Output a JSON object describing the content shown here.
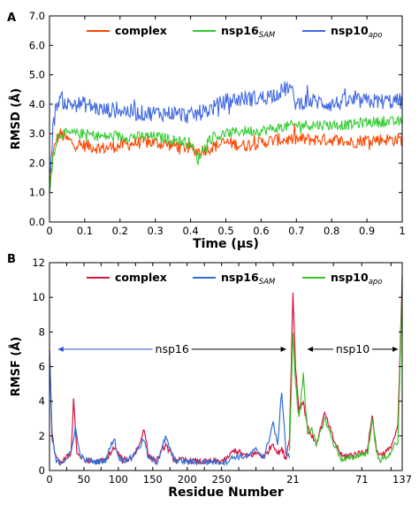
{
  "figure": {
    "panel_a_label": "A",
    "panel_b_label": "B"
  },
  "chart_data": [
    {
      "panel": "A",
      "type": "line",
      "xlabel": "Time (μs)",
      "ylabel": "RMSD (Å)",
      "xlim": [
        0,
        1
      ],
      "ylim": [
        0,
        7
      ],
      "xticks": [
        0,
        0.1,
        0.2,
        0.3,
        0.4,
        0.5,
        0.6,
        0.7,
        0.8,
        0.9,
        1
      ],
      "xtick_labels": [
        "0",
        "0.1",
        "0.2",
        "0.3",
        "0.4",
        "0.5",
        "0.6",
        "0.7",
        "0.8",
        "0.9",
        "1"
      ],
      "yticks": [
        0,
        1,
        2,
        3,
        4,
        5,
        6,
        7
      ],
      "ytick_labels": [
        "0.0",
        "1.0",
        "2.0",
        "3.0",
        "4.0",
        "5.0",
        "6.0",
        "7.0"
      ],
      "legend_placement": "top",
      "series": [
        {
          "name": "complex",
          "color": "#ff4500",
          "x": [
            0,
            0.01,
            0.02,
            0.03,
            0.05,
            0.08,
            0.1,
            0.15,
            0.2,
            0.25,
            0.3,
            0.35,
            0.4,
            0.42,
            0.45,
            0.5,
            0.55,
            0.6,
            0.65,
            0.7,
            0.75,
            0.8,
            0.85,
            0.9,
            0.95,
            1.0
          ],
          "y": [
            1.2,
            2.3,
            2.8,
            3.0,
            2.8,
            2.6,
            2.6,
            2.5,
            2.6,
            2.7,
            2.7,
            2.6,
            2.5,
            2.4,
            2.5,
            2.7,
            2.6,
            2.7,
            2.8,
            2.8,
            2.8,
            2.8,
            2.7,
            2.8,
            2.8,
            2.8
          ],
          "noise": 0.22
        },
        {
          "name": "nsp16SAM",
          "color": "#32cd32",
          "x": [
            0,
            0.01,
            0.02,
            0.03,
            0.05,
            0.08,
            0.1,
            0.15,
            0.2,
            0.25,
            0.3,
            0.35,
            0.4,
            0.42,
            0.45,
            0.5,
            0.55,
            0.6,
            0.65,
            0.7,
            0.75,
            0.8,
            0.85,
            0.9,
            0.95,
            1.0
          ],
          "y": [
            1.0,
            2.2,
            2.8,
            3.0,
            3.0,
            3.0,
            3.0,
            2.9,
            2.9,
            2.9,
            2.9,
            2.8,
            2.7,
            2.1,
            2.8,
            3.0,
            3.1,
            3.1,
            3.2,
            3.3,
            3.3,
            3.3,
            3.3,
            3.4,
            3.4,
            3.4
          ],
          "noise": 0.18
        },
        {
          "name": "nsp10apo",
          "color": "#4169e1",
          "x": [
            0,
            0.01,
            0.02,
            0.03,
            0.05,
            0.08,
            0.1,
            0.15,
            0.2,
            0.25,
            0.3,
            0.35,
            0.4,
            0.45,
            0.5,
            0.55,
            0.6,
            0.65,
            0.68,
            0.7,
            0.72,
            0.75,
            0.8,
            0.85,
            0.9,
            0.95,
            1.0
          ],
          "y": [
            1.5,
            3.2,
            4.0,
            4.2,
            4.0,
            4.0,
            4.0,
            3.8,
            3.8,
            3.7,
            3.7,
            3.7,
            3.6,
            3.8,
            4.1,
            4.2,
            4.2,
            4.4,
            4.6,
            4.0,
            4.1,
            4.1,
            4.0,
            4.1,
            4.1,
            4.1,
            4.1
          ],
          "noise": 0.28
        }
      ],
      "legend_labels": [
        {
          "main": "complex",
          "sub": ""
        },
        {
          "main": "nsp16",
          "sub": "SAM"
        },
        {
          "main": "nsp10",
          "sub": "apo"
        }
      ]
    },
    {
      "panel": "B",
      "type": "line",
      "xlabel": "Residue Number",
      "ylabel": "RMSF (Å)",
      "xlim": [
        0,
        410
      ],
      "ylim": [
        0,
        12
      ],
      "xticks": [
        0,
        20,
        40,
        60,
        80,
        100,
        120,
        140,
        160,
        180,
        200,
        220,
        240,
        260,
        283,
        330,
        363,
        397,
        410
      ],
      "xtick_labels": [
        "0",
        "",
        "50",
        "",
        "100",
        "",
        "150",
        "",
        "200",
        "",
        "250",
        "",
        "",
        "",
        "21",
        "",
        "71",
        "",
        "137"
      ],
      "yticks": [
        0,
        2,
        4,
        6,
        8,
        10,
        12
      ],
      "ytick_labels": [
        "0",
        "2",
        "4",
        "6",
        "8",
        "10",
        "12"
      ],
      "legend_placement": "top",
      "annotations": [
        {
          "text": "nsp16",
          "x_start": 10,
          "x_end": 275,
          "y": 7.0
        },
        {
          "text": "nsp10",
          "x_start": 300,
          "x_end": 405,
          "y": 7.0
        }
      ],
      "series": [
        {
          "name": "complex",
          "color": "#d2143c",
          "x": [
            0,
            3,
            8,
            15,
            25,
            28,
            32,
            40,
            55,
            65,
            75,
            85,
            95,
            105,
            110,
            115,
            125,
            135,
            145,
            160,
            175,
            190,
            205,
            215,
            230,
            240,
            250,
            260,
            265,
            270,
            275,
            279,
            283,
            286,
            290,
            295,
            300,
            310,
            320,
            330,
            340,
            350,
            360,
            370,
            375,
            380,
            385,
            395,
            400,
            405,
            410
          ],
          "y": [
            7.0,
            2.0,
            0.6,
            0.5,
            1.0,
            4.1,
            1.0,
            0.6,
            0.5,
            0.6,
            1.3,
            0.6,
            0.7,
            1.5,
            2.5,
            0.8,
            0.6,
            1.5,
            0.6,
            0.6,
            0.5,
            0.5,
            0.6,
            1.2,
            0.8,
            1.0,
            0.8,
            1.6,
            1.0,
            1.2,
            0.7,
            2.0,
            10.2,
            6.0,
            3.5,
            4.0,
            2.5,
            1.5,
            3.3,
            1.8,
            0.8,
            0.9,
            1.0,
            1.2,
            3.3,
            1.2,
            0.9,
            1.2,
            1.8,
            2.5,
            11.1
          ]
        },
        {
          "name": "nsp16SAM",
          "color": "#2f6fd6",
          "x": [
            0,
            3,
            8,
            15,
            25,
            30,
            35,
            40,
            55,
            65,
            75,
            80,
            85,
            95,
            105,
            110,
            115,
            125,
            135,
            145,
            160,
            175,
            190,
            205,
            215,
            230,
            240,
            250,
            260,
            265,
            270,
            275,
            279
          ],
          "y": [
            7.0,
            1.8,
            0.5,
            0.5,
            1.0,
            2.5,
            1.0,
            0.6,
            0.5,
            0.6,
            1.9,
            0.8,
            0.6,
            0.7,
            1.4,
            1.8,
            0.7,
            0.5,
            1.9,
            0.6,
            0.5,
            0.5,
            0.5,
            0.5,
            0.8,
            0.8,
            1.2,
            0.8,
            2.8,
            1.4,
            4.6,
            1.0,
            0.8
          ]
        },
        {
          "name": "nsp10apo",
          "color": "#3cbf28",
          "x": [
            279,
            283,
            286,
            290,
            295,
            300,
            305,
            310,
            320,
            330,
            340,
            350,
            360,
            370,
            375,
            380,
            385,
            395,
            400,
            405,
            410
          ],
          "y": [
            1.0,
            8.1,
            5.0,
            3.0,
            5.5,
            2.2,
            2.5,
            1.4,
            3.0,
            1.6,
            0.6,
            0.7,
            0.9,
            1.0,
            3.0,
            1.0,
            0.6,
            0.9,
            1.4,
            1.5,
            10.6
          ]
        }
      ],
      "legend_labels": [
        {
          "main": "complex",
          "sub": ""
        },
        {
          "main": "nsp16",
          "sub": "SAM"
        },
        {
          "main": "nsp10",
          "sub": "apo"
        }
      ]
    }
  ]
}
